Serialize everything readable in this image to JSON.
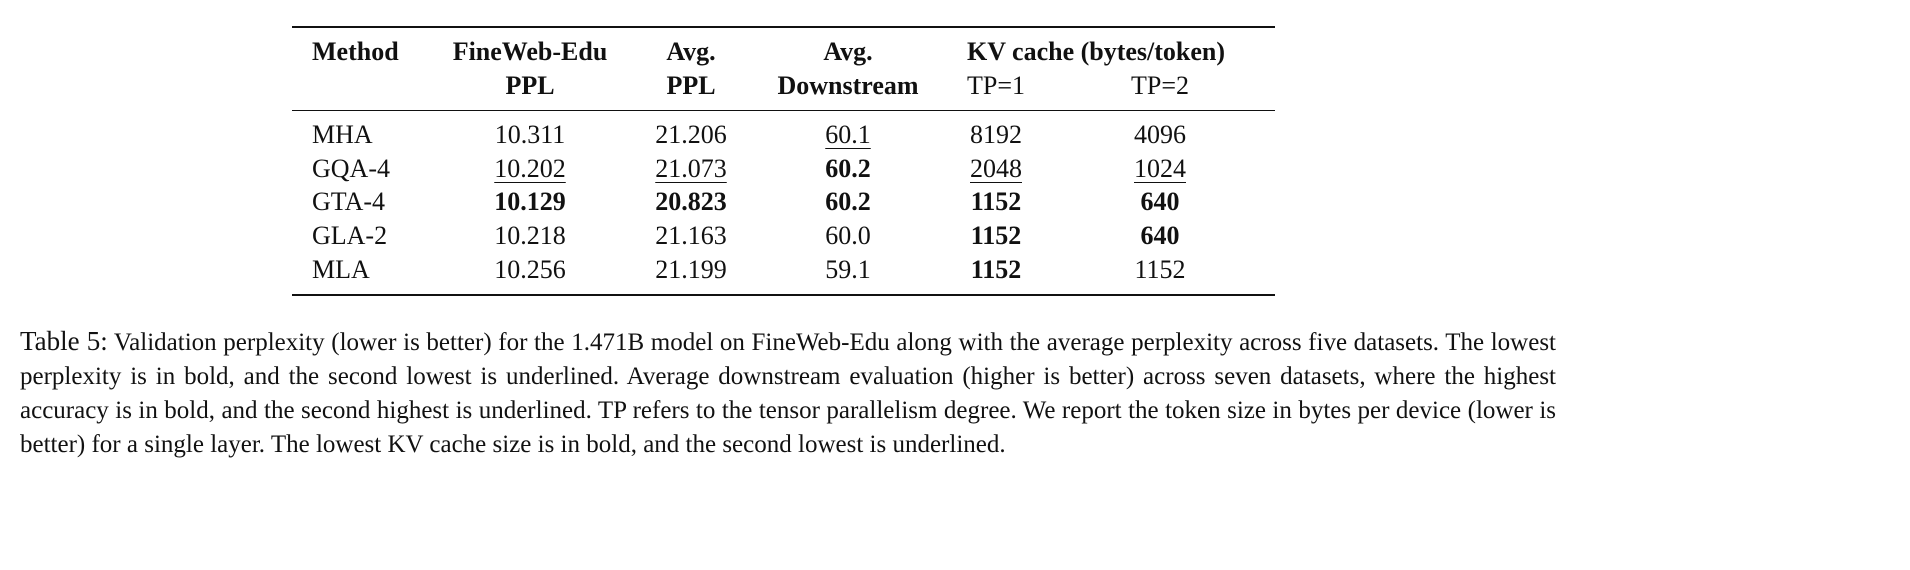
{
  "table": {
    "header_top": [
      "Method",
      "FineWeb-Edu",
      "Avg.",
      "Avg.",
      "KV cache (bytes/token)"
    ],
    "header_bottom": [
      "PPL",
      "PPL",
      "Downstream",
      "TP=1",
      "TP=2"
    ],
    "rows": [
      [
        "MHA",
        "10.311",
        "21.206",
        "60.1",
        "8192",
        "4096"
      ],
      [
        "GQA-4",
        "10.202",
        "21.073",
        "60.2",
        "2048",
        "1024"
      ],
      [
        "GTA-4",
        "10.129",
        "20.823",
        "60.2",
        "1152",
        "640"
      ],
      [
        "GLA-2",
        "10.218",
        "21.163",
        "60.0",
        "1152",
        "640"
      ],
      [
        "MLA",
        "10.256",
        "21.199",
        "59.1",
        "1152",
        "1152"
      ]
    ]
  },
  "caption": {
    "label": "Table 5:",
    "text": "Validation perplexity (lower is better) for the 1.471B model on FineWeb-Edu along with the average perplexity across five datasets. The lowest perplexity is in bold, and the second lowest is underlined. Average downstream evaluation (higher is better) across seven datasets, where the highest accuracy is in bold, and the second highest is underlined. TP refers to the tensor parallelism degree. We report the token size in bytes per device (lower is better) for a single layer. The lowest KV cache size is in bold, and the second lowest is underlined."
  }
}
